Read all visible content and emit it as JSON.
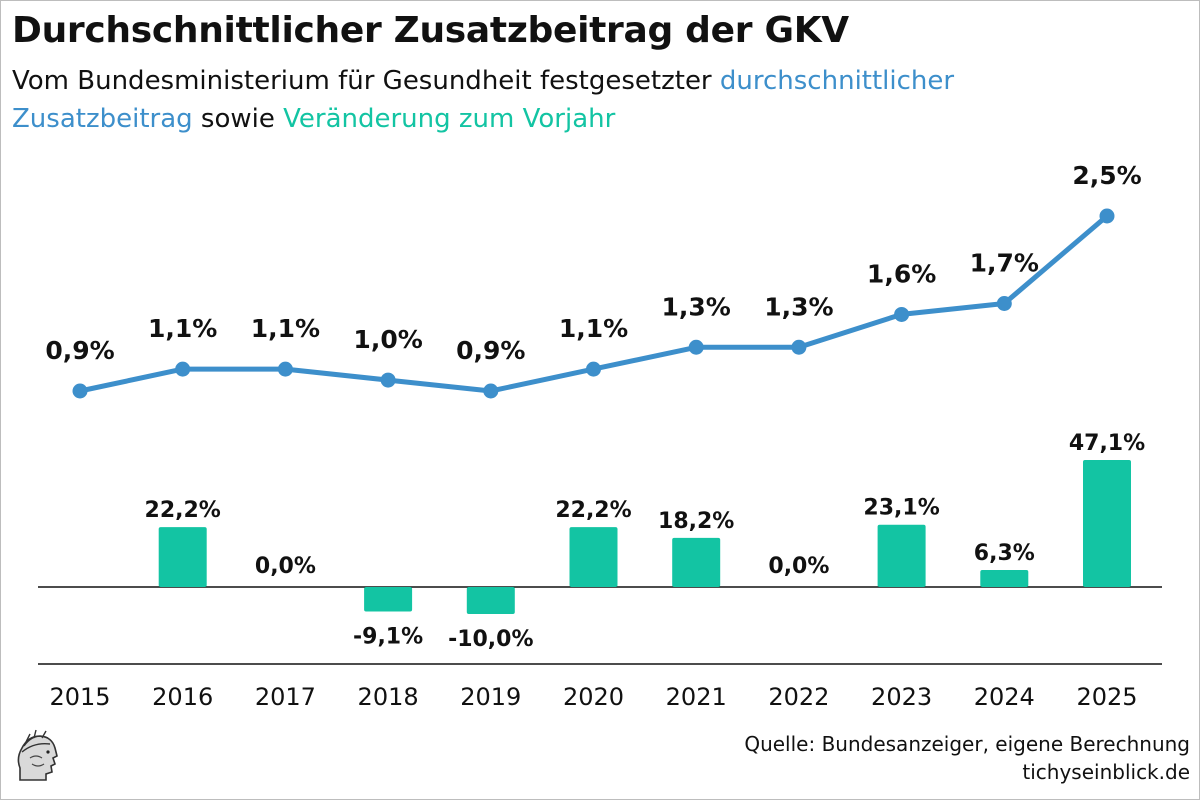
{
  "title": "Durchschnittlicher Zusatzbeitrag der GKV",
  "subtitle": {
    "part1": "Vom Bundesministerium für Gesundheit festgesetzter ",
    "line_series": "durchschnittlicher Zusatzbeitrag",
    "part2": " sowie ",
    "bar_series": "Veränderung zum Vorjahr"
  },
  "source": {
    "line1": "Quelle: Bundesanzeiger, eigene Berechnung",
    "line2": "tichyseinblick.de"
  },
  "colors": {
    "line": "#3d8fcb",
    "bar": "#13c4a3",
    "text": "#111111",
    "axis": "#111111"
  },
  "logo": "tichys-einblick-head-logo",
  "chart_data": {
    "type": "line+bar",
    "categories": [
      "2015",
      "2016",
      "2017",
      "2018",
      "2019",
      "2020",
      "2021",
      "2022",
      "2023",
      "2024",
      "2025"
    ],
    "series": [
      {
        "name": "durchschnittlicher Zusatzbeitrag",
        "type": "line",
        "unit": "%",
        "values": [
          0.9,
          1.1,
          1.1,
          1.0,
          0.9,
          1.1,
          1.3,
          1.3,
          1.6,
          1.7,
          2.5
        ],
        "labels": [
          "0,9%",
          "1,1%",
          "1,1%",
          "1,0%",
          "0,9%",
          "1,1%",
          "1,3%",
          "1,3%",
          "1,6%",
          "1,7%",
          "2,5%"
        ]
      },
      {
        "name": "Veränderung zum Vorjahr",
        "type": "bar",
        "unit": "%",
        "values": [
          null,
          22.2,
          0.0,
          -9.1,
          -10.0,
          22.2,
          18.2,
          0.0,
          23.1,
          6.3,
          47.1
        ],
        "labels": [
          "",
          "22,2%",
          "0,0%",
          "-9,1%",
          "-10,0%",
          "22,2%",
          "18,2%",
          "0,0%",
          "23,1%",
          "6,3%",
          "47,1%"
        ]
      }
    ],
    "grid": false,
    "legend": "none (series named in subtitle)"
  }
}
